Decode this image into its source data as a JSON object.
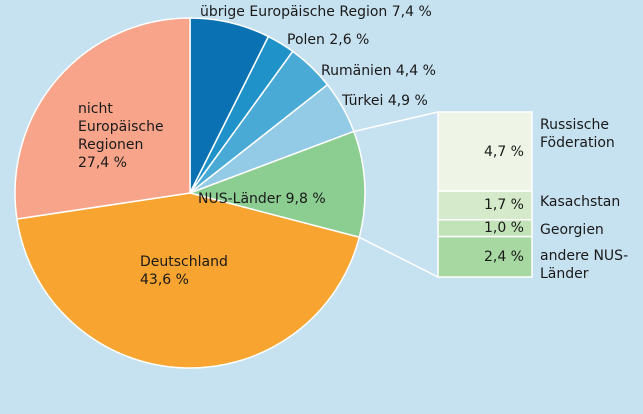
{
  "chart_data": [
    {
      "type": "pie",
      "categories": [
        "übrige Europäische Region",
        "Polen",
        "Rumänien",
        "Türkei",
        "NUS-Länder",
        "Deutschland",
        "nicht Europäische Regionen"
      ],
      "values": [
        7.4,
        2.6,
        4.4,
        4.9,
        9.8,
        43.6,
        27.4
      ],
      "value_labels": [
        "7,4 %",
        "2,6 %",
        "4,4 %",
        "4,9 %",
        "9,8 %",
        "43,6 %",
        "27,4 %"
      ],
      "colors": [
        "#0a72b2",
        "#1f93c9",
        "#4aaad6",
        "#93cbe6",
        "#8ccd91",
        "#f7a431",
        "#f7a48a"
      ]
    },
    {
      "type": "bar",
      "categories": [
        "Russische Föderation",
        "Kasachstan",
        "Georgien",
        "andere NUS-Länder"
      ],
      "values": [
        4.7,
        1.7,
        1.0,
        2.4
      ],
      "value_labels": [
        "4,7 %",
        "1,7 %",
        "1,0 %",
        "2,4 %"
      ],
      "colors": [
        "#eef5e7",
        "#d4eacb",
        "#c2e2b8",
        "#a8d8a2"
      ]
    }
  ]
}
